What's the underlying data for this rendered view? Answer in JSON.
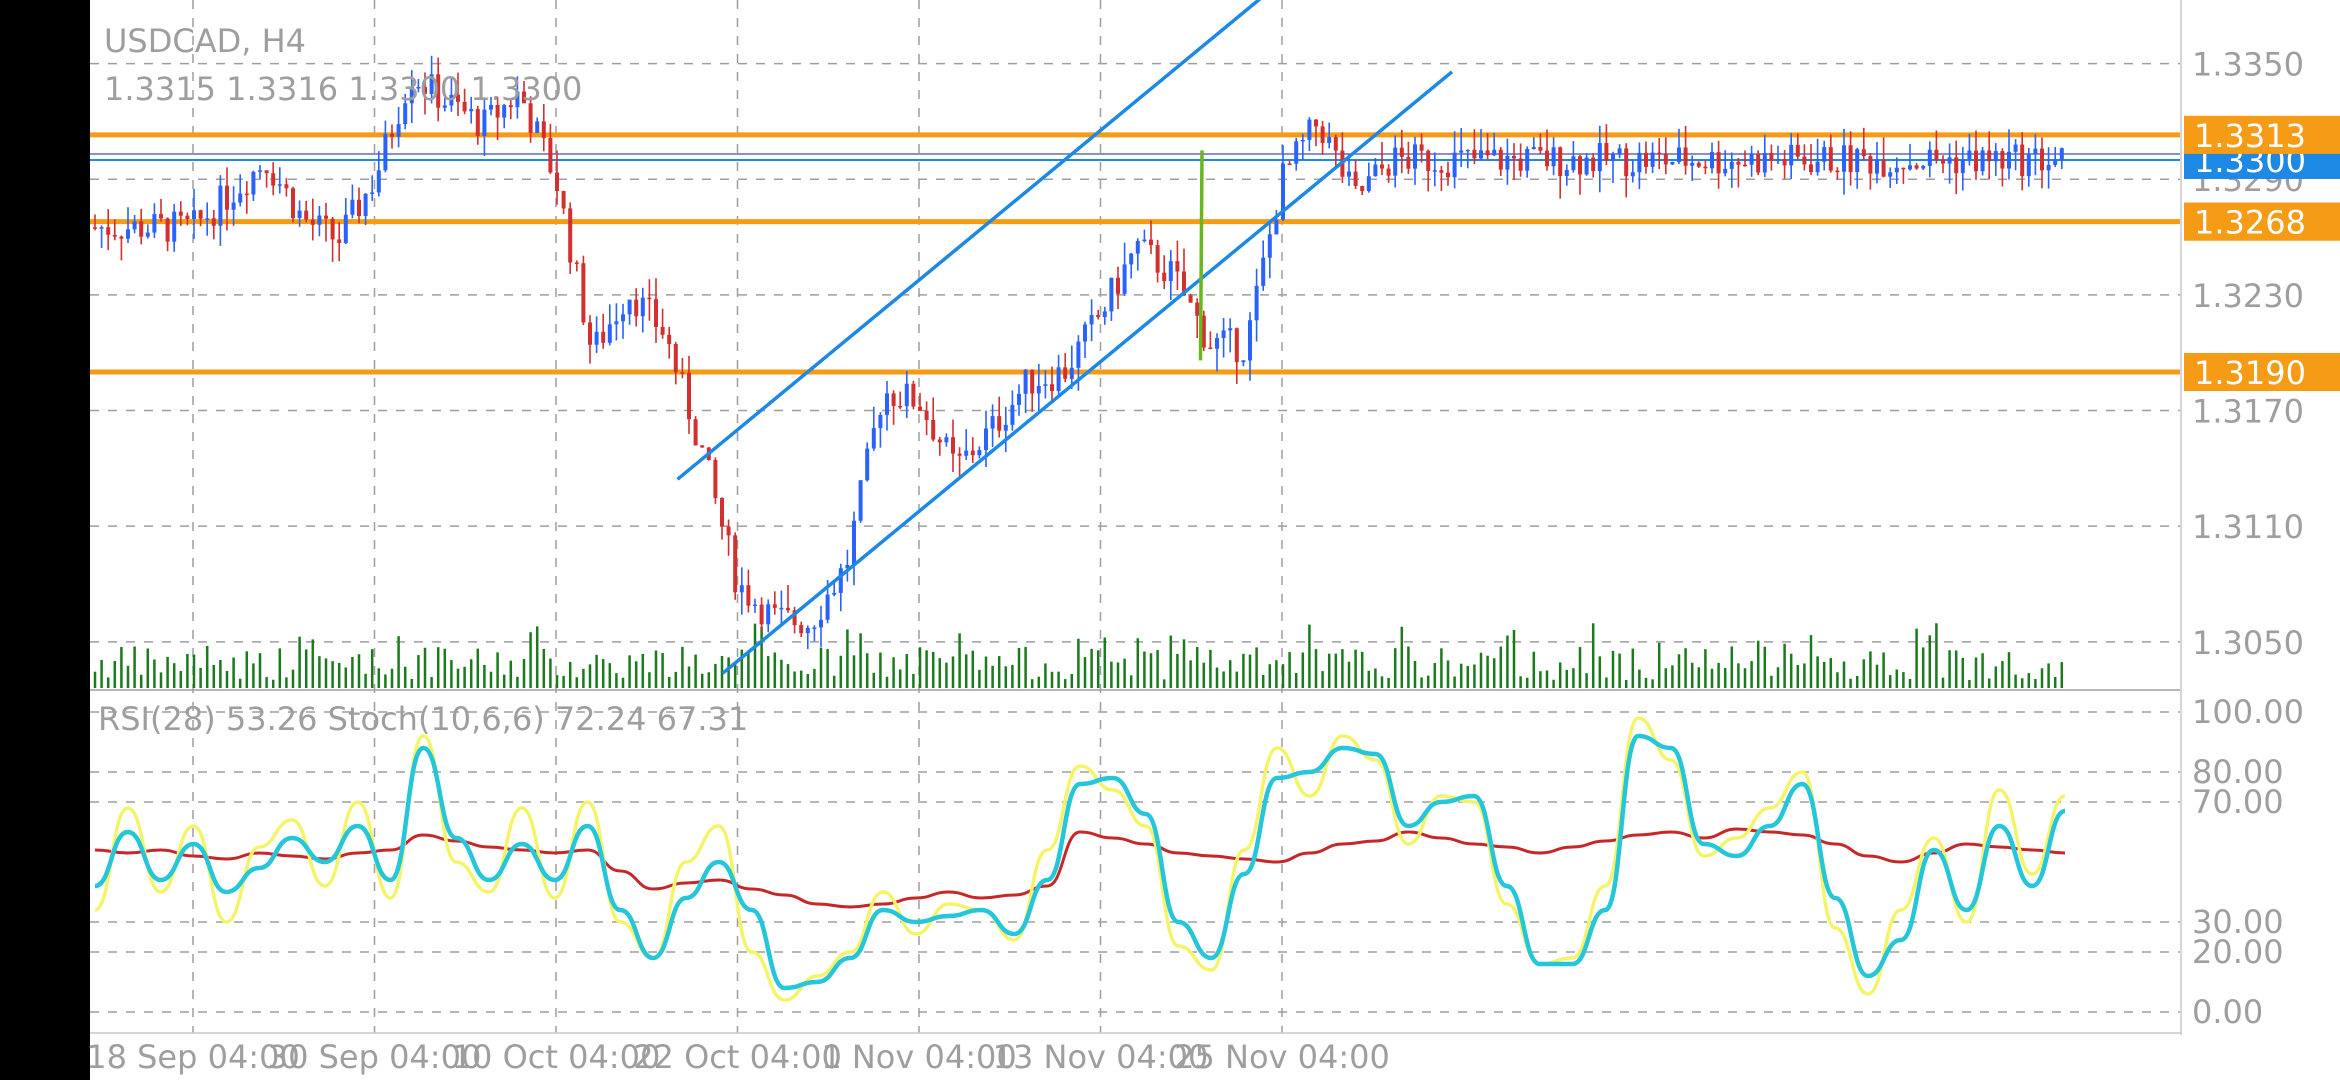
{
  "header": {
    "symbol": "USDCAD, H4",
    "ohlc": "1.3315 1.3316 1.3300 1.3300"
  },
  "indicator_header": {
    "text": "RSI(28) 53.26 Stoch(10,6,6) 72.24 67.31"
  },
  "colors": {
    "background": "#ffffff",
    "margin": "#000000",
    "grid": "#9e9e9e",
    "up_candle": "#2962ff",
    "down_candle": "#d32f2f",
    "volume": "#1b7a1b",
    "horizontal_level": "#f59b16",
    "channel": "#1e88e5",
    "current_price_line": "#1e88e5",
    "trend_line": "#6ab61e",
    "rsi": "#c62828",
    "stoch_main": "#f4f46a",
    "stoch_signal": "#26c6da"
  },
  "chart_data": [
    {
      "type": "candlestick",
      "symbol": "USDCAD",
      "timeframe": "H4",
      "x_labels": [
        "18 Sep 04:00",
        "30 Sep 04:00",
        "10 Oct 04:00",
        "22 Oct 04:00",
        "1 Nov 04:00",
        "13 Nov 04:00",
        "25 Nov 04:00"
      ],
      "y_ticks": [
        "1.3350",
        "1.3290",
        "1.3230",
        "1.3170",
        "1.3110",
        "1.3050"
      ],
      "ylim": [
        1.3025,
        1.3383
      ],
      "price_labels": [
        {
          "value": "1.3313",
          "kind": "level"
        },
        {
          "value": "1.3300",
          "kind": "current"
        },
        {
          "value": "1.3268",
          "kind": "level"
        },
        {
          "value": "1.3190",
          "kind": "level"
        }
      ],
      "horizontal_levels": [
        1.3313,
        1.3268,
        1.319
      ],
      "current_price": 1.33,
      "channel": {
        "lower": [
          [
            "22 Oct 04:00",
            1.304
          ],
          [
            "25 Nov 04:00",
            1.3273
          ]
        ],
        "upper_offset": 0.012
      },
      "trend_line": [
        [
          "13 Nov 04:00",
          1.3196
        ],
        [
          "25 Nov 04:00",
          1.3305
        ]
      ],
      "approx_path": [
        [
          "18 Sep 04:00",
          1.3265
        ],
        [
          1.3282
        ],
        [
          1.33
        ],
        [
          1.327
        ],
        [
          1.3258
        ],
        [
          "30 Sep 04:00",
          1.329
        ],
        [
          1.3345
        ],
        [
          1.333
        ],
        [
          1.3318
        ],
        [
          1.3335
        ],
        [
          "10 Oct 04:00",
          1.329
        ],
        [
          1.32
        ],
        [
          1.3232
        ],
        [
          1.321
        ],
        [
          1.315
        ],
        [
          "22 Oct 04:00",
          1.308
        ],
        [
          1.3062
        ],
        [
          1.306
        ],
        [
          1.309
        ],
        [
          1.318
        ],
        [
          "1 Nov 04:00",
          1.3175
        ],
        [
          1.314
        ],
        [
          1.316
        ],
        [
          1.3185
        ],
        [
          1.319
        ],
        [
          "13 Nov 04:00",
          1.322
        ],
        [
          1.3255
        ],
        [
          1.324
        ],
        [
          1.3205
        ],
        [
          1.3203
        ],
        [
          "25 Nov 04:00",
          1.329
        ],
        [
          1.332
        ],
        [
          1.328
        ],
        [
          1.33
        ],
        [
          1.33
        ]
      ]
    },
    {
      "type": "line",
      "title": "RSI(28) 53.26 Stoch(10,6,6) 72.24 67.31",
      "y_ticks": [
        "100.00",
        "80.00",
        "70.00",
        "30.00",
        "20.00",
        "0.00"
      ],
      "ylim": [
        0,
        100
      ],
      "series": [
        {
          "name": "RSI(28)",
          "last_value": 53.26,
          "values": [
            54,
            53,
            54,
            52,
            51,
            53,
            52,
            51,
            53,
            54,
            59,
            57,
            55,
            54,
            53,
            54,
            47,
            41,
            43,
            44,
            41,
            39,
            36,
            35,
            36,
            38,
            40,
            38,
            39,
            42,
            60,
            58,
            56,
            53,
            52,
            51,
            50,
            53,
            56,
            57,
            60,
            58,
            56,
            55,
            53,
            55,
            57,
            59,
            60,
            58,
            61,
            60,
            59,
            56,
            52,
            50,
            53,
            56,
            55,
            54,
            53
          ]
        },
        {
          "name": "Stoch(10,6,6) main",
          "last_value": 72.24,
          "values": [
            34,
            68,
            40,
            62,
            30,
            55,
            64,
            42,
            70,
            38,
            92,
            50,
            40,
            68,
            38,
            70,
            30,
            18,
            50,
            62,
            20,
            4,
            12,
            20,
            40,
            26,
            36,
            34,
            24,
            54,
            82,
            74,
            62,
            22,
            14,
            54,
            88,
            72,
            92,
            84,
            56,
            72,
            70,
            36,
            16,
            18,
            42,
            98,
            84,
            52,
            58,
            68,
            80,
            28,
            6,
            34,
            58,
            30,
            74,
            46,
            72
          ]
        },
        {
          "name": "Stoch(10,6,6) signal",
          "last_value": 67.31,
          "values": [
            42,
            60,
            44,
            56,
            40,
            48,
            58,
            50,
            62,
            44,
            88,
            58,
            44,
            56,
            44,
            62,
            34,
            18,
            38,
            50,
            34,
            8,
            10,
            18,
            34,
            30,
            32,
            34,
            26,
            44,
            76,
            78,
            66,
            30,
            18,
            46,
            78,
            80,
            88,
            86,
            62,
            70,
            72,
            42,
            16,
            16,
            34,
            92,
            88,
            56,
            52,
            62,
            76,
            38,
            12,
            24,
            54,
            34,
            62,
            42,
            67
          ]
        }
      ]
    }
  ]
}
